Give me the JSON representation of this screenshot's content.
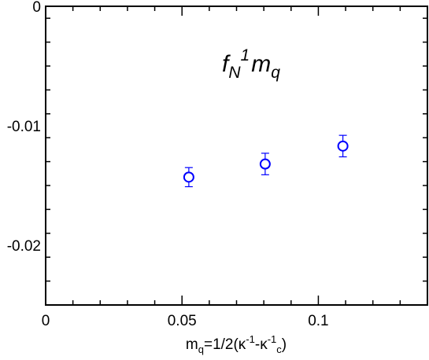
{
  "chart_data": {
    "type": "scatter",
    "title": "",
    "annotation": {
      "main": "f",
      "sub1": "N",
      "sup": "1",
      "main2": "m",
      "sub2": "q"
    },
    "xlabel": {
      "t1": "m",
      "t2": "q",
      "t3": "=1/2(κ",
      "t4": "-1",
      "t5": "-κ",
      "t6": "-1",
      "t7": "c",
      "t8": ")"
    },
    "ylabel": "",
    "xlim": [
      0,
      0.14
    ],
    "ylim": [
      -0.025,
      0
    ],
    "xticks": [
      {
        "value": 0,
        "label": "0"
      },
      {
        "value": 0.05,
        "label": "0.05"
      },
      {
        "value": 0.1,
        "label": "0.1"
      }
    ],
    "yticks": [
      {
        "value": 0,
        "label": "0"
      },
      {
        "value": -0.01,
        "label": "-0.01"
      },
      {
        "value": -0.02,
        "label": "-0.02"
      }
    ],
    "x_minor_step": 0.01,
    "y_minor_step": 0.002,
    "grid": false,
    "marker": "open-circle",
    "color": "#0000ff",
    "series": [
      {
        "points": [
          {
            "x": 0.0525,
            "y": -0.0143,
            "err": 0.0008
          },
          {
            "x": 0.0805,
            "y": -0.0132,
            "err": 0.0009
          },
          {
            "x": 0.109,
            "y": -0.0117,
            "err": 0.0009
          }
        ]
      }
    ]
  }
}
